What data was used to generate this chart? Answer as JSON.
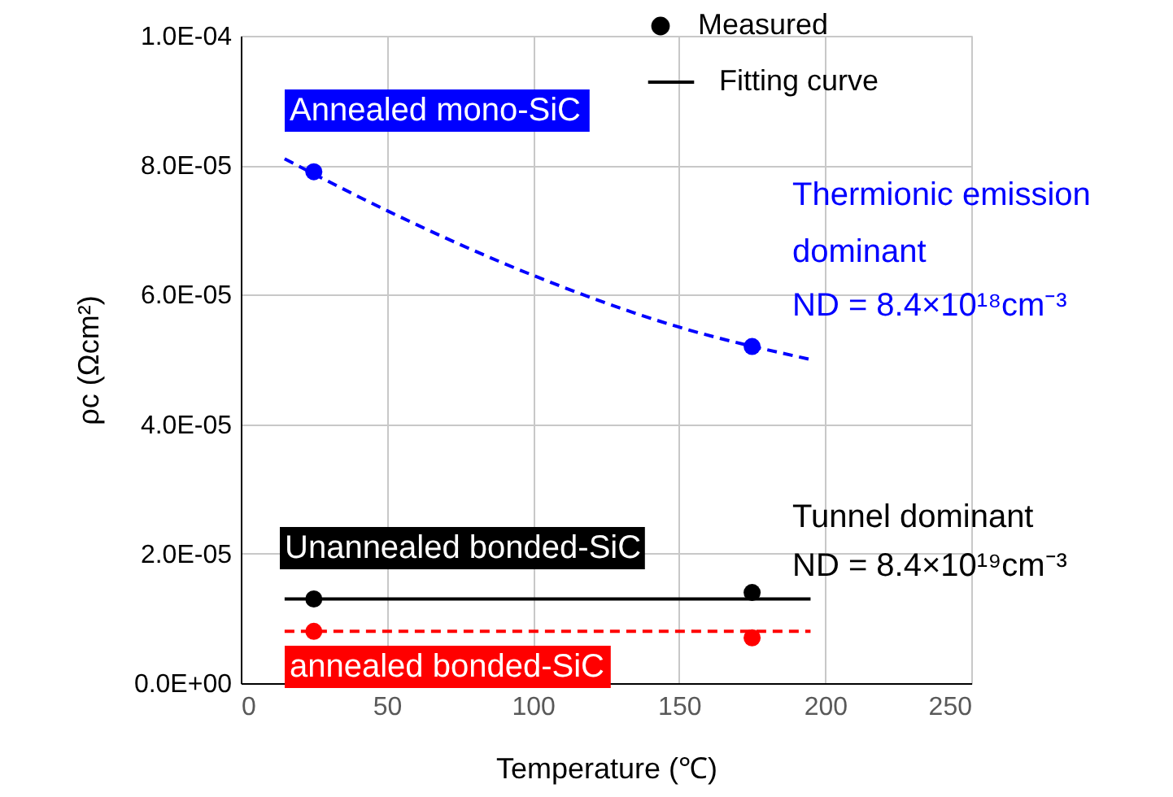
{
  "chart_data": {
    "type": "scatter",
    "xlabel": "Temperature (℃)",
    "ylabel": "ρc (Ωcm²)",
    "xlim": [
      0,
      250
    ],
    "xticks": [
      0,
      50,
      100,
      150,
      200,
      250
    ],
    "ylim": [
      0,
      0.0001
    ],
    "yticks": [
      {
        "value": 0,
        "label": "0.0E+00"
      },
      {
        "value": 2e-05,
        "label": "2.0E-05"
      },
      {
        "value": 4e-05,
        "label": "4.0E-05"
      },
      {
        "value": 6e-05,
        "label": "6.0E-05"
      },
      {
        "value": 8e-05,
        "label": "8.0E-05"
      },
      {
        "value": 0.0001,
        "label": "1.0E-04"
      }
    ],
    "grid": true,
    "legend": "top right",
    "series": [
      {
        "type": "line",
        "color": "#0000ff",
        "line_style": "dashed",
        "x": [
          15,
          50,
          100,
          150,
          195
        ],
        "values": [
          8.1e-05,
          7.3e-05,
          6.3e-05,
          5.5e-05,
          5e-05
        ]
      },
      {
        "type": "line",
        "name": "Fitting curve",
        "color": "#000000",
        "line_style": "solid",
        "x": [
          15,
          195
        ],
        "values": [
          1.3e-05,
          1.3e-05
        ]
      },
      {
        "type": "line",
        "color": "#ff0000",
        "line_style": "dashed",
        "x": [
          15,
          195
        ],
        "values": [
          8e-06,
          8e-06
        ]
      },
      {
        "color": "#0000ff",
        "marker": "circle",
        "x": [
          25,
          175
        ],
        "values": [
          7.9e-05,
          5.2e-05
        ]
      },
      {
        "name": "Measured",
        "color": "#000000",
        "marker": "circle",
        "x": [
          25,
          175
        ],
        "values": [
          1.3e-05,
          1.4e-05
        ]
      },
      {
        "color": "#ff0000",
        "marker": "circle",
        "x": [
          25,
          175
        ],
        "values": [
          8e-06,
          7e-06
        ]
      }
    ],
    "annotations": [
      "Annealed mono-SiC",
      "Unannealed bonded-SiC",
      "annealed bonded-SiC",
      "Thermionic emission",
      "dominant",
      "ND = 8.4×10¹⁸cm⁻³",
      "Tunnel dominant",
      "ND = 8.4×10¹⁹cm⁻³"
    ]
  }
}
